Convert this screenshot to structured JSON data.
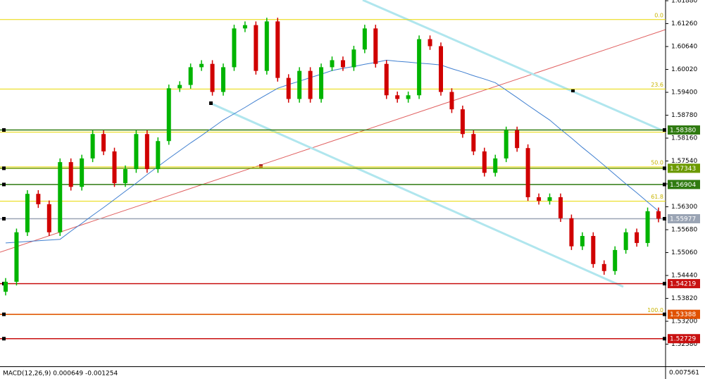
{
  "chart_data": {
    "type": "candlestick",
    "open": [
      1.54,
      1.5427,
      1.5561,
      1.5665,
      1.5637,
      1.5561,
      1.5751,
      1.5684,
      1.5761,
      1.5827,
      1.578,
      1.5694,
      1.5732,
      1.5827,
      1.5732,
      1.5808,
      1.5951,
      1.596,
      1.6008,
      1.6017,
      1.5941,
      1.6008,
      1.6113,
      1.6122,
      1.5998,
      1.6132,
      1.5979,
      1.5922,
      1.5998,
      1.5922,
      1.6008,
      1.6027,
      1.6008,
      1.6056,
      1.6113,
      1.6017,
      1.5932,
      1.5922,
      1.5932,
      1.6084,
      1.6065,
      1.5941,
      1.5894,
      1.5827,
      1.578,
      1.5722,
      1.5761,
      1.5837,
      1.5789,
      1.5656,
      1.5646,
      1.5656,
      1.5599,
      1.5523,
      1.5551,
      1.5475,
      1.5456,
      1.5513,
      1.5561,
      1.5532,
      1.5618
    ],
    "high": [
      1.5437,
      1.5571,
      1.5675,
      1.5675,
      1.5647,
      1.5761,
      1.5761,
      1.5771,
      1.5837,
      1.5837,
      1.579,
      1.5742,
      1.5837,
      1.5837,
      1.5818,
      1.5961,
      1.597,
      1.6018,
      1.6027,
      1.6027,
      1.6018,
      1.6123,
      1.6132,
      1.6132,
      1.6142,
      1.6142,
      1.5989,
      1.6008,
      1.6008,
      1.6018,
      1.6037,
      1.6037,
      1.6066,
      1.6123,
      1.6123,
      1.6027,
      1.5942,
      1.5942,
      1.6094,
      1.6094,
      1.6075,
      1.5951,
      1.5904,
      1.5837,
      1.579,
      1.5771,
      1.5847,
      1.5847,
      1.5799,
      1.5666,
      1.5666,
      1.5666,
      1.5609,
      1.5561,
      1.5561,
      1.5485,
      1.5523,
      1.5571,
      1.5571,
      1.5628,
      1.5628
    ],
    "low": [
      1.539,
      1.5417,
      1.5551,
      1.5627,
      1.5551,
      1.5551,
      1.5674,
      1.5674,
      1.5751,
      1.577,
      1.5684,
      1.5684,
      1.5722,
      1.5722,
      1.5722,
      1.5798,
      1.5941,
      1.595,
      1.5998,
      1.5931,
      1.5931,
      1.5998,
      1.6103,
      1.5988,
      1.5988,
      1.5969,
      1.5912,
      1.5912,
      1.5912,
      1.5912,
      1.5998,
      1.5998,
      1.5998,
      1.6046,
      1.6007,
      1.5922,
      1.5912,
      1.5912,
      1.5922,
      1.6055,
      1.5931,
      1.5884,
      1.5817,
      1.577,
      1.5712,
      1.5712,
      1.5751,
      1.5779,
      1.5646,
      1.5636,
      1.5636,
      1.5589,
      1.5513,
      1.5513,
      1.5465,
      1.5446,
      1.5446,
      1.5503,
      1.5522,
      1.5522,
      1.5588
    ],
    "close": [
      1.5427,
      1.5561,
      1.5665,
      1.5637,
      1.5561,
      1.5751,
      1.5684,
      1.5761,
      1.5827,
      1.578,
      1.5694,
      1.5732,
      1.5827,
      1.5732,
      1.5808,
      1.5951,
      1.596,
      1.6008,
      1.6017,
      1.5941,
      1.6008,
      1.6113,
      1.6122,
      1.5998,
      1.6132,
      1.5979,
      1.5922,
      1.5998,
      1.5922,
      1.6008,
      1.6027,
      1.6008,
      1.6056,
      1.6113,
      1.6017,
      1.5932,
      1.5922,
      1.5932,
      1.6084,
      1.6065,
      1.5941,
      1.5894,
      1.5827,
      1.578,
      1.5722,
      1.5761,
      1.5837,
      1.5789,
      1.5656,
      1.5646,
      1.5656,
      1.5599,
      1.5523,
      1.5551,
      1.5475,
      1.5456,
      1.5513,
      1.5561,
      1.5532,
      1.5618,
      1.5598
    ],
    "up_color": "#00b400",
    "down_color": "#d00000",
    "ma": {
      "color": "#3f7fd0",
      "values": [
        1.5532,
        1.5534,
        1.5536,
        1.5538,
        1.554,
        1.5542,
        1.5564,
        1.5585,
        1.5607,
        1.5628,
        1.565,
        1.5672,
        1.5694,
        1.5717,
        1.5739,
        1.5761,
        1.5782,
        1.5803,
        1.5823,
        1.5844,
        1.5865,
        1.5882,
        1.5899,
        1.5917,
        1.5934,
        1.5951,
        1.5961,
        1.597,
        1.598,
        1.5989,
        1.5999,
        1.6005,
        1.601,
        1.6016,
        1.6021,
        1.6027,
        1.6024,
        1.6022,
        1.6019,
        1.6017,
        1.6014,
        1.6004,
        1.5995,
        1.5985,
        1.5976,
        1.5966,
        1.5946,
        1.5926,
        1.5905,
        1.5885,
        1.5865,
        1.584,
        1.5816,
        1.5791,
        1.5767,
        1.5742,
        1.5717,
        1.5692,
        1.5668,
        1.5643,
        1.5618
      ]
    },
    "ylim": [
      1.619,
      1.5198
    ],
    "yticks": [
      {
        "value": 1.6188,
        "label": "1.61880"
      },
      {
        "value": 1.6126,
        "label": "1.61260"
      },
      {
        "value": 1.6064,
        "label": "1.60640"
      },
      {
        "value": 1.6002,
        "label": "1.60020"
      },
      {
        "value": 1.594,
        "label": "1.59400"
      },
      {
        "value": 1.5878,
        "label": "1.58780"
      },
      {
        "value": 1.5816,
        "label": "1.58160"
      },
      {
        "value": 1.5754,
        "label": "1.57540"
      },
      {
        "value": 1.5692,
        "label": "1.56920"
      },
      {
        "value": 1.563,
        "label": "1.56300"
      },
      {
        "value": 1.5568,
        "label": "1.55680"
      },
      {
        "value": 1.5506,
        "label": "1.55060"
      },
      {
        "value": 1.5444,
        "label": "1.54440"
      },
      {
        "value": 1.5382,
        "label": "1.53820"
      },
      {
        "value": 1.532,
        "label": "1.53200"
      },
      {
        "value": 1.5258,
        "label": "1.52580"
      }
    ],
    "fib_color": "#e8d800",
    "fib": [
      {
        "label": "0.0",
        "value": 1.6137
      },
      {
        "label": "23.6",
        "value": 1.5949
      },
      {
        "label": null,
        "value": 1.5832
      },
      {
        "label": "50.0",
        "value": 1.5738
      },
      {
        "label": "61.8",
        "value": 1.5645
      },
      {
        "label": "100.0",
        "value": 1.5338
      }
    ],
    "levels": [
      {
        "price": {
          "value": 1.5838,
          "label": "1.58380"
        },
        "color": "#2f7a10"
      },
      {
        "price": {
          "value": 1.57343,
          "label": "1.57343"
        },
        "color": "#6c9a00"
      },
      {
        "price": {
          "value": 1.56904,
          "label": "1.56904"
        },
        "color": "#2f7a10"
      },
      {
        "price": {
          "value": 1.55977,
          "label": "1.55977"
        },
        "color": "#9aa4b4"
      },
      {
        "price": {
          "value": 1.54219,
          "label": "1.54219"
        },
        "color": "#c81010"
      },
      {
        "price": {
          "value": 1.53388,
          "label": "1.53388"
        },
        "color": "#e05000"
      },
      {
        "price": {
          "value": 1.52729,
          "label": "1.52729"
        },
        "color": "#c81010"
      }
    ],
    "indicator_label": "MACD(12,26,9) 0.000649 -0.001254",
    "indicator_max": 0.007561
  }
}
